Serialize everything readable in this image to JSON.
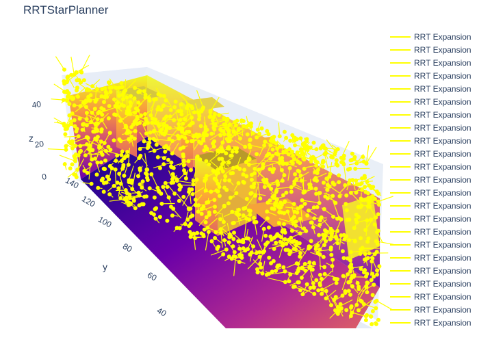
{
  "chart_data": {
    "type": "scatter",
    "title": "RRTStarPlanner",
    "axes": {
      "y": {
        "label": "y",
        "ticks": [
          "40",
          "60",
          "80",
          "100",
          "120",
          "140"
        ]
      },
      "z": {
        "label": "z",
        "ticks": [
          "0",
          "20",
          "40"
        ]
      }
    },
    "legend": {
      "placement": "right",
      "entries": [
        "RRT Expansion",
        "RRT Expansion",
        "RRT Expansion",
        "RRT Expansion",
        "RRT Expansion",
        "RRT Expansion",
        "RRT Expansion",
        "RRT Expansion",
        "RRT Expansion",
        "RRT Expansion",
        "RRT Expansion",
        "RRT Expansion",
        "RRT Expansion",
        "RRT Expansion",
        "RRT Expansion",
        "RRT Expansion",
        "RRT Expansion",
        "RRT Expansion",
        "RRT Expansion",
        "RRT Expansion",
        "RRT Expansion",
        "RRT Expansion",
        "RRT Expansion"
      ]
    },
    "colors": {
      "expansion": "#ffff00",
      "surface_low": "#0d0887",
      "surface_mid": "#cc4778",
      "surface_high": "#f0f921",
      "grid": "#e5ecf6"
    }
  }
}
